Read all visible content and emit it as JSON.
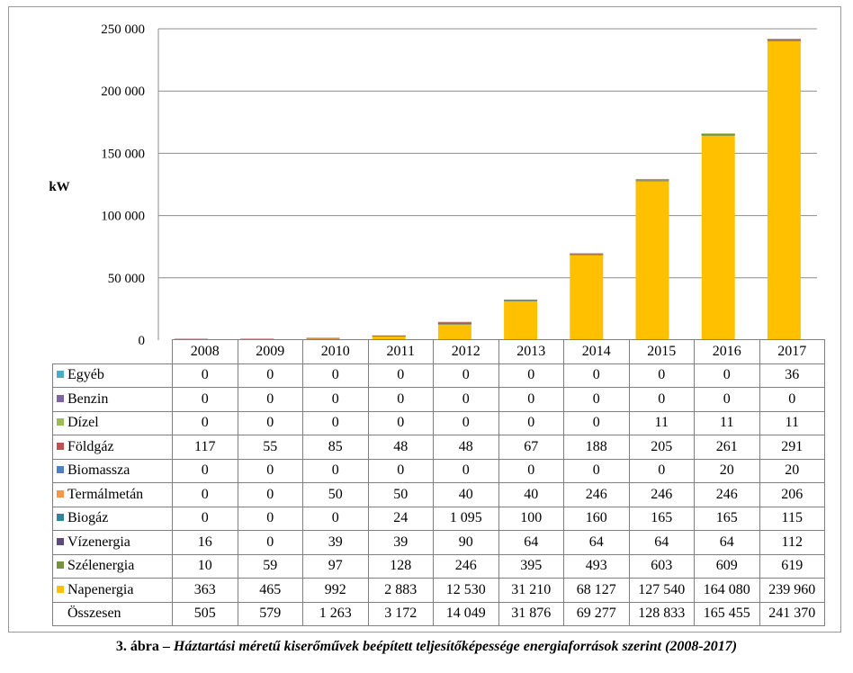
{
  "chart_data": {
    "type": "bar",
    "stacked": true,
    "ylabel": "kW",
    "ylim": [
      0,
      250000
    ],
    "yticks": [
      0,
      50000,
      100000,
      150000,
      200000,
      250000
    ],
    "ytick_labels": [
      "0",
      "50 000",
      "100 000",
      "150 000",
      "200 000",
      "250 000"
    ],
    "grid": true,
    "categories": [
      "2008",
      "2009",
      "2010",
      "2011",
      "2012",
      "2013",
      "2014",
      "2015",
      "2016",
      "2017"
    ],
    "series": [
      {
        "name": "Egyéb",
        "color": "#4bacc6",
        "values": [
          0,
          0,
          0,
          0,
          0,
          0,
          0,
          0,
          0,
          36
        ],
        "labels": [
          "0",
          "0",
          "0",
          "0",
          "0",
          "0",
          "0",
          "0",
          "0",
          "36"
        ]
      },
      {
        "name": "Benzin",
        "color": "#8064a2",
        "values": [
          0,
          0,
          0,
          0,
          0,
          0,
          0,
          0,
          0,
          0
        ],
        "labels": [
          "0",
          "0",
          "0",
          "0",
          "0",
          "0",
          "0",
          "0",
          "0",
          "0"
        ]
      },
      {
        "name": "Dízel",
        "color": "#9bbb59",
        "values": [
          0,
          0,
          0,
          0,
          0,
          0,
          0,
          11,
          11,
          11
        ],
        "labels": [
          "0",
          "0",
          "0",
          "0",
          "0",
          "0",
          "0",
          "11",
          "11",
          "11"
        ]
      },
      {
        "name": "Földgáz",
        "color": "#c0504d",
        "values": [
          117,
          55,
          85,
          48,
          48,
          67,
          188,
          205,
          261,
          291
        ],
        "labels": [
          "117",
          "55",
          "85",
          "48",
          "48",
          "67",
          "188",
          "205",
          "261",
          "291"
        ]
      },
      {
        "name": "Biomassza",
        "color": "#4f81bd",
        "values": [
          0,
          0,
          0,
          0,
          0,
          0,
          0,
          0,
          20,
          20
        ],
        "labels": [
          "0",
          "0",
          "0",
          "0",
          "0",
          "0",
          "0",
          "0",
          "20",
          "20"
        ]
      },
      {
        "name": "Termálmetán",
        "color": "#f79646",
        "values": [
          0,
          0,
          50,
          50,
          40,
          40,
          246,
          246,
          246,
          206
        ],
        "labels": [
          "0",
          "0",
          "50",
          "50",
          "40",
          "40",
          "246",
          "246",
          "246",
          "206"
        ]
      },
      {
        "name": "Biogáz",
        "color": "#31859c",
        "values": [
          0,
          0,
          0,
          24,
          1095,
          100,
          160,
          165,
          165,
          115
        ],
        "labels": [
          "0",
          "0",
          "0",
          "24",
          "1 095",
          "100",
          "160",
          "165",
          "165",
          "115"
        ]
      },
      {
        "name": "Vízenergia",
        "color": "#604a7b",
        "values": [
          16,
          0,
          39,
          39,
          90,
          64,
          64,
          64,
          64,
          112
        ],
        "labels": [
          "16",
          "0",
          "39",
          "39",
          "90",
          "64",
          "64",
          "64",
          "64",
          "112"
        ]
      },
      {
        "name": "Szélenergia",
        "color": "#77933c",
        "values": [
          10,
          59,
          97,
          128,
          246,
          395,
          493,
          603,
          609,
          619
        ],
        "labels": [
          "10",
          "59",
          "97",
          "128",
          "246",
          "395",
          "493",
          "603",
          "609",
          "619"
        ]
      },
      {
        "name": "Napenergia",
        "color": "#ffc000",
        "values": [
          363,
          465,
          992,
          2883,
          12530,
          31210,
          68127,
          127540,
          164080,
          239960
        ],
        "labels": [
          "363",
          "465",
          "992",
          "2 883",
          "12 530",
          "31 210",
          "68 127",
          "127 540",
          "164 080",
          "239 960"
        ]
      }
    ],
    "totals": {
      "name": "Összesen",
      "values": [
        505,
        579,
        1263,
        3172,
        14049,
        31876,
        69277,
        128833,
        165455,
        241370
      ],
      "labels": [
        "505",
        "579",
        "1 263",
        "3 172",
        "14 049",
        "31 876",
        "69 277",
        "128 833",
        "165 455",
        "241 370"
      ]
    }
  },
  "caption": {
    "lead": "3. ábra – ",
    "text": "Háztartási méretű kiserőművek beépített teljesítőképessége energiaforrások szerint (2008-2017)"
  }
}
